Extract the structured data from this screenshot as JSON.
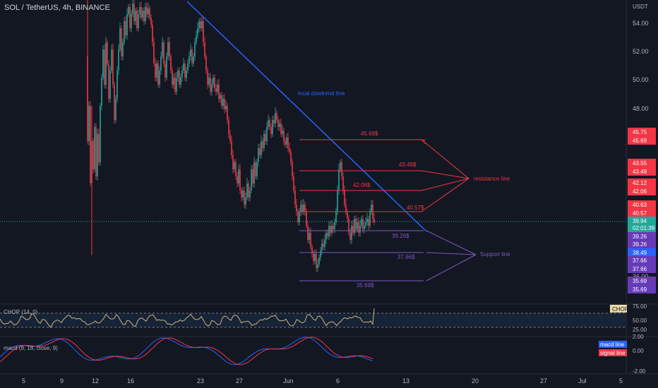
{
  "header": {
    "symbol_title": "SOL / TetherUS, 4h, BINANCE"
  },
  "price_axis": {
    "currency": "USDT",
    "ticks": [
      "54.00",
      "52.00",
      "50.00",
      "48.00",
      "36.00"
    ]
  },
  "price_labels": [
    {
      "text": "45.75",
      "color": "#f23645"
    },
    {
      "text": "45.69",
      "color": "#f23645"
    },
    {
      "text": "43.55",
      "color": "#f23645"
    },
    {
      "text": "43.49",
      "color": "#f23645"
    },
    {
      "text": "42.12",
      "color": "#f23645"
    },
    {
      "text": "42.06",
      "color": "#f23645"
    },
    {
      "text": "40.63",
      "color": "#f23645"
    },
    {
      "text": "40.57",
      "color": "#f23645"
    },
    {
      "text": "39.94",
      "color": "#26a69a"
    },
    {
      "text": "02:01:39",
      "color": "#26a69a"
    },
    {
      "text": "39.26",
      "color": "#673ab7"
    },
    {
      "text": "39.26",
      "color": "#673ab7"
    },
    {
      "text": "38.49",
      "color": "#2962ff"
    },
    {
      "text": "37.66",
      "color": "#673ab7"
    },
    {
      "text": "37.66",
      "color": "#673ab7"
    },
    {
      "text": "35.69",
      "color": "#673ab7"
    },
    {
      "text": "35.69",
      "color": "#673ab7"
    }
  ],
  "annotations": {
    "downtrend_label": "local dowtrend line",
    "resistance_label": "resistance line",
    "support_label": "Support line",
    "resistance_levels": [
      "45.69$",
      "43.49$",
      "42.06$",
      "40.57$"
    ],
    "support_levels": [
      "39.26$",
      "37.66$",
      "35.69$"
    ]
  },
  "chop_panel": {
    "title": "CHOP (14, 0)",
    "badge": "CHOP",
    "ticks": [
      "75.00",
      "50.00",
      "25.00"
    ]
  },
  "macd_panel": {
    "title": "macd (8, 18, close, 9)",
    "ticks": [
      "2.00",
      "0.00",
      "-2.00"
    ],
    "legend": [
      {
        "text": "macd line",
        "color": "#2962ff"
      },
      {
        "text": "signal line",
        "color": "#f23645"
      }
    ]
  },
  "time_axis": {
    "labels": [
      "5",
      "9",
      "12",
      "16",
      "23",
      "27",
      "Jun",
      "6",
      "13",
      "20",
      "27",
      "Jul",
      "5"
    ]
  },
  "colors": {
    "up": "#26a69a",
    "down": "#f23645",
    "resistance": "#f23645",
    "support": "#7e57c2",
    "trend": "#2962ff",
    "background": "#131722"
  }
}
